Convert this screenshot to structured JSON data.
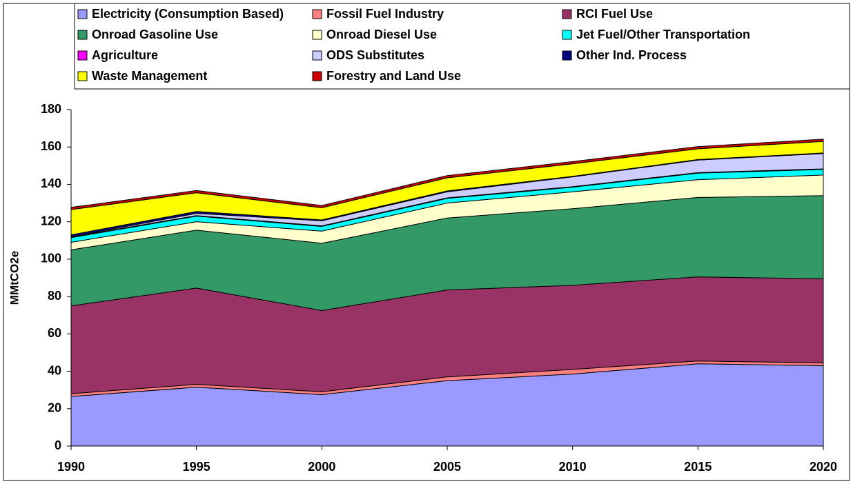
{
  "chart_data": {
    "type": "stacked-area",
    "y_label": "MMtCO2e",
    "x": [
      1990,
      1995,
      2000,
      2005,
      2010,
      2015,
      2020
    ],
    "xlim": [
      1990,
      2020
    ],
    "xticks": [
      1990,
      1995,
      2000,
      2005,
      2010,
      2015,
      2020
    ],
    "ylim": [
      0,
      180
    ],
    "yticks": [
      0,
      20,
      40,
      60,
      80,
      100,
      120,
      140,
      160,
      180
    ],
    "legend": "top",
    "series": [
      {
        "name": "Electricity (Consumption Based)",
        "color": "#9999ff",
        "values": [
          26.5,
          31.5,
          27.5,
          35,
          38.5,
          44,
          43
        ]
      },
      {
        "name": "Fossil Fuel Industry",
        "color": "#ff8080",
        "values": [
          1.5,
          1.5,
          1.5,
          2,
          2.5,
          1.5,
          1.5
        ]
      },
      {
        "name": "RCI Fuel Use",
        "color": "#993366",
        "values": [
          47,
          51.5,
          43.5,
          46.5,
          45,
          45,
          45
        ]
      },
      {
        "name": "Onroad Gasoline Use",
        "color": "#339966",
        "values": [
          30,
          31,
          36,
          38.5,
          41,
          42.5,
          44.5
        ]
      },
      {
        "name": "Onroad Diesel Use",
        "color": "#ffffcc",
        "values": [
          4,
          4.5,
          6.5,
          8,
          9,
          9.5,
          11
        ]
      },
      {
        "name": "Jet Fuel/Other Transportation",
        "color": "#00ffff",
        "values": [
          2.5,
          3,
          2.5,
          2.5,
          2.5,
          3.5,
          3
        ]
      },
      {
        "name": "Agriculture",
        "color": "#ff00ff",
        "values": [
          0.3,
          0.3,
          0.3,
          0.3,
          0.3,
          0.3,
          0.3
        ]
      },
      {
        "name": "ODS Substitutes",
        "color": "#ccccff",
        "values": [
          0.2,
          1.2,
          2.7,
          3.2,
          5.2,
          6.7,
          8.2
        ]
      },
      {
        "name": "Other Ind. Process",
        "color": "#000080",
        "values": [
          1,
          1,
          0.5,
          0.5,
          0.3,
          0.3,
          0.3
        ]
      },
      {
        "name": "Waste Management",
        "color": "#ffff00",
        "values": [
          13.5,
          10,
          6.5,
          7,
          6.7,
          5.7,
          6.2
        ]
      },
      {
        "name": "Forestry and Land Use",
        "color": "#cc0000",
        "values": [
          1.2,
          1.2,
          1.2,
          1.2,
          1.2,
          1.2,
          1.2
        ]
      }
    ]
  }
}
